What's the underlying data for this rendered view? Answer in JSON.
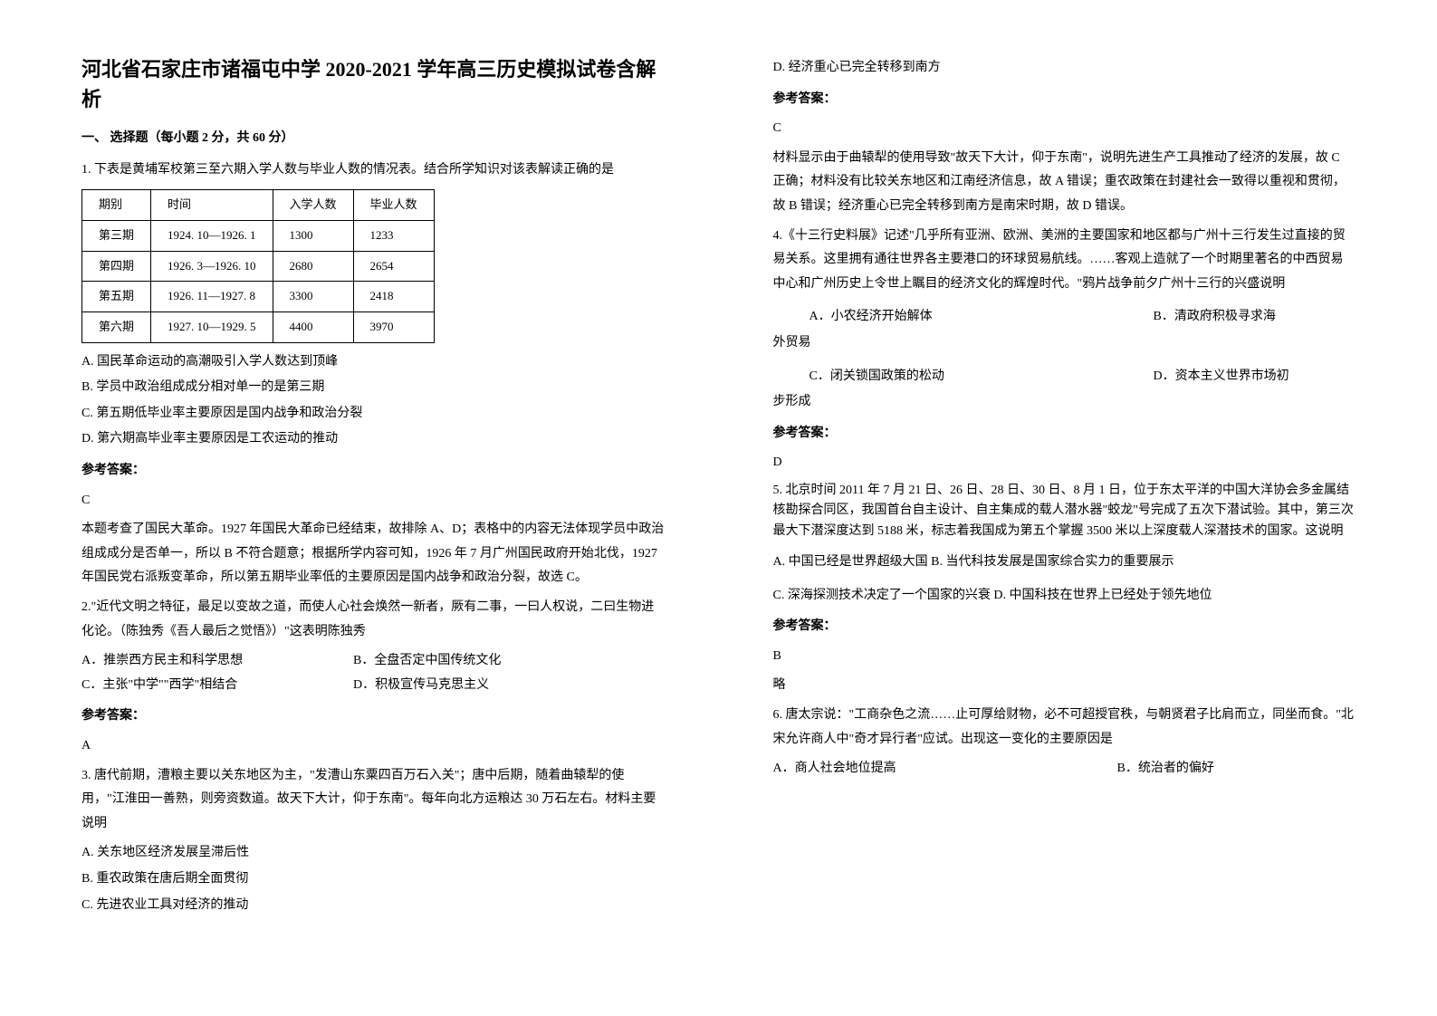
{
  "left": {
    "title": "河北省石家庄市诸福屯中学 2020-2021 学年高三历史模拟试卷含解析",
    "section1": "一、 选择题（每小题 2 分，共 60 分）",
    "q1": {
      "stem": "1. 下表是黄埔军校第三至六期入学人数与毕业人数的情况表。结合所学知识对该表解读正确的是",
      "table": {
        "headers": [
          "期别",
          "时间",
          "入学人数",
          "毕业人数"
        ],
        "rows": [
          [
            "第三期",
            "1924. 10—1926. 1",
            "1300",
            "1233"
          ],
          [
            "第四期",
            "1926. 3—1926. 10",
            "2680",
            "2654"
          ],
          [
            "第五期",
            "1926. 11—1927. 8",
            "3300",
            "2418"
          ],
          [
            "第六期",
            "1927. 10—1929. 5",
            "4400",
            "3970"
          ]
        ]
      },
      "A": "A. 国民革命运动的高潮吸引入学人数达到顶峰",
      "B": "B. 学员中政治组成成分相对单一的是第三期",
      "C": "C. 第五期低毕业率主要原因是国内战争和政治分裂",
      "D": "D. 第六期高毕业率主要原因是工农运动的推动",
      "ans_head": "参考答案：",
      "ans": "C",
      "exp": "本题考查了国民大革命。1927 年国民大革命已经结束，故排除 A、D；表格中的内容无法体现学员中政治组成成分是否单一，所以 B 不符合题意；根据所学内容可知，1926 年 7 月广州国民政府开始北伐，1927 年国民党右派叛变革命，所以第五期毕业率低的主要原因是国内战争和政治分裂，故选 C。"
    },
    "q2": {
      "stem": "2.\"近代文明之特征，最足以变故之道，而使人心社会焕然一新者，厥有二事，一曰人权说，二曰生物进化论。（陈独秀《吾人最后之觉悟》）\"这表明陈独秀",
      "A": "A．推崇西方民主和科学思想",
      "B": "B．全盘否定中国传统文化",
      "C": "C．主张\"中学\"\"西学\"相结合",
      "D": "D．积极宣传马克思主义",
      "ans_head": "参考答案：",
      "ans": "A"
    },
    "q3": {
      "stem": "3. 唐代前期，漕粮主要以关东地区为主，\"发漕山东粟四百万石入关\"；唐中后期，随着曲辕犁的使用，\"江淮田一善熟，则旁资数道。故天下大计，仰于东南\"。每年向北方运粮达 30 万石左右。材料主要说明",
      "A": "A. 关东地区经济发展呈滞后性",
      "B": "B. 重农政策在唐后期全面贯彻",
      "C": "C. 先进农业工具对经济的推动"
    }
  },
  "right": {
    "q3": {
      "D": "D. 经济重心已完全转移到南方",
      "ans_head": "参考答案：",
      "ans": "C",
      "exp": "材料显示由于曲辕犁的使用导致\"故天下大计，仰于东南\"，说明先进生产工具推动了经济的发展，故 C 正确；材料没有比较关东地区和江南经济信息，故 A 错误；重农政策在封建社会一致得以重视和贯彻，故 B 错误；经济重心已完全转移到南方是南宋时期，故 D 错误。"
    },
    "q4": {
      "stem": "4.《十三行史料展》记述\"几乎所有亚洲、欧洲、美洲的主要国家和地区都与广州十三行发生过直接的贸易关系。这里拥有通往世界各主要港口的环球贸易航线。……客观上造就了一个时期里著名的中西贸易中心和广州历史上令世上瞩目的经济文化的辉煌时代。\"鸦片战争前夕广州十三行的兴盛说明",
      "A": "A．小农经济开始解体",
      "B": "B．清政府积极寻求海",
      "B_cont": "外贸易",
      "C": "C．闭关锁国政策的松动",
      "D": "D．资本主义世界市场初",
      "D_cont": "步形成",
      "ans_head": "参考答案：",
      "ans": "D"
    },
    "q5": {
      "stem": "5. 北京时间 2011 年 7 月 21 日、26 日、28 日、30 日、8 月 1 日，位于东太平洋的中国大洋协会多金属结核勘探合同区，我国首台自主设计、自主集成的载人潜水器\"蛟龙\"号完成了五次下潜试验。其中，第三次最大下潜深度达到 5188 米，标志着我国成为第五个掌握 3500 米以上深度载人深潜技术的国家。这说明",
      "AB": "A. 中国已经是世界超级大国    B. 当代科技发展是国家综合实力的重要展示",
      "CD": "C. 深海探测技术决定了一个国家的兴衰 D. 中国科技在世界上已经处于领先地位",
      "ans_head": "参考答案：",
      "ans": "B",
      "sl": "略"
    },
    "q6": {
      "stem": "6. 唐太宗说：\"工商杂色之流……止可厚给财物，必不可超授官秩，与朝贤君子比肩而立，同坐而食。\"北宋允许商人中\"奇才异行者\"应试。出现这一变化的主要原因是",
      "A": "A．商人社会地位提高",
      "B": "B．统治者的偏好"
    }
  }
}
